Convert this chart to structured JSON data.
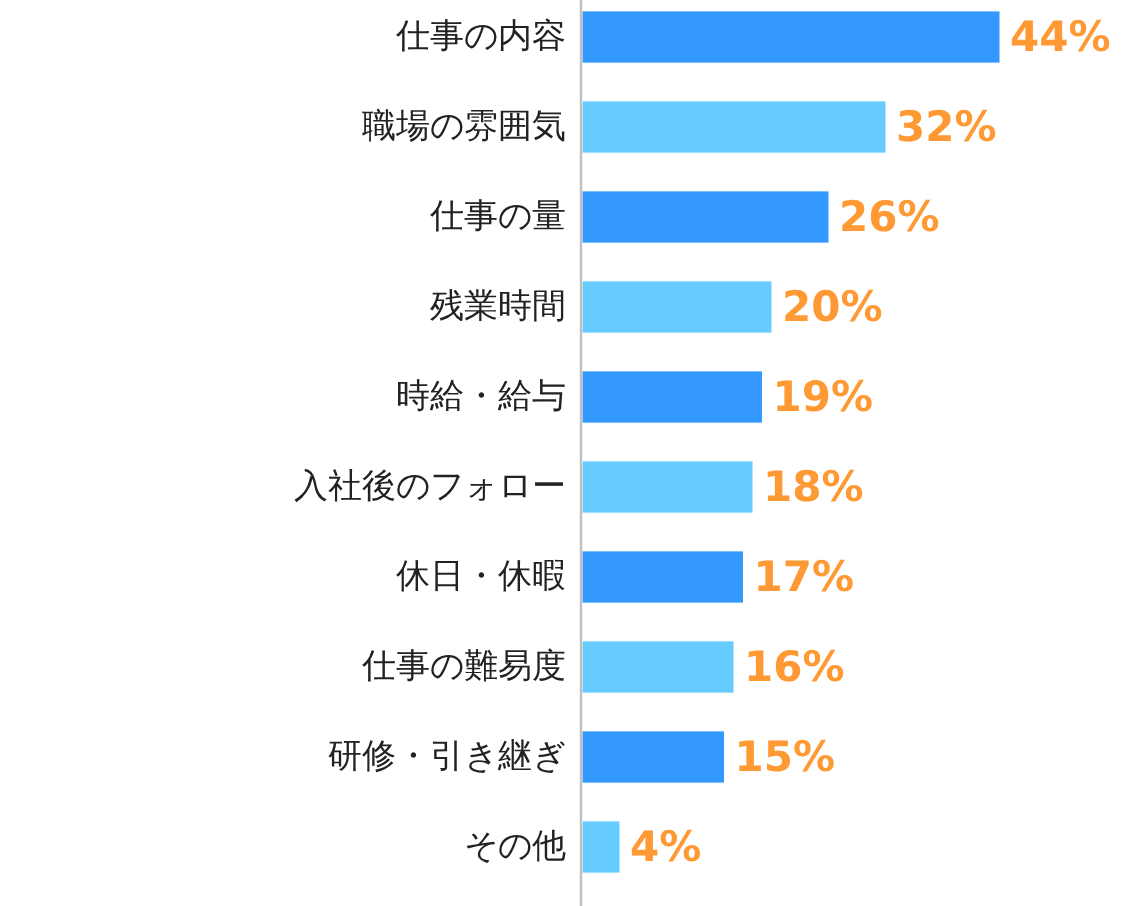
{
  "chart_data": {
    "type": "bar",
    "orientation": "horizontal",
    "categories": [
      "仕事の内容",
      "職場の雰囲気",
      "仕事の量",
      "残業時間",
      "時給・給与",
      "入社後のフォロー",
      "休日・休暇",
      "仕事の難易度",
      "研修・引き継ぎ",
      "その他"
    ],
    "values": [
      44,
      32,
      26,
      20,
      19,
      18,
      17,
      16,
      15,
      4
    ],
    "colors": [
      "#3399ff",
      "#66ccff",
      "#3399ff",
      "#66ccff",
      "#3399ff",
      "#66ccff",
      "#3399ff",
      "#66ccff",
      "#3399ff",
      "#66ccff"
    ],
    "value_labels": [
      "44%",
      "32%",
      "26%",
      "20%",
      "19%",
      "18%",
      "17%",
      "16%",
      "15%",
      "4%"
    ],
    "tick_labels": "y"
  }
}
